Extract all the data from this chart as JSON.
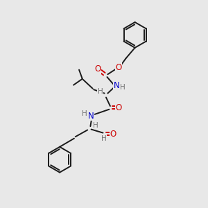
{
  "background_color": "#e8e8e8",
  "bond_color": "#1a1a1a",
  "oxygen_color": "#cc0000",
  "nitrogen_color": "#0000cc",
  "h_color": "#707070",
  "figsize": [
    3.0,
    3.0
  ],
  "dpi": 100,
  "xlim": [
    0,
    10
  ],
  "ylim": [
    0,
    10
  ]
}
